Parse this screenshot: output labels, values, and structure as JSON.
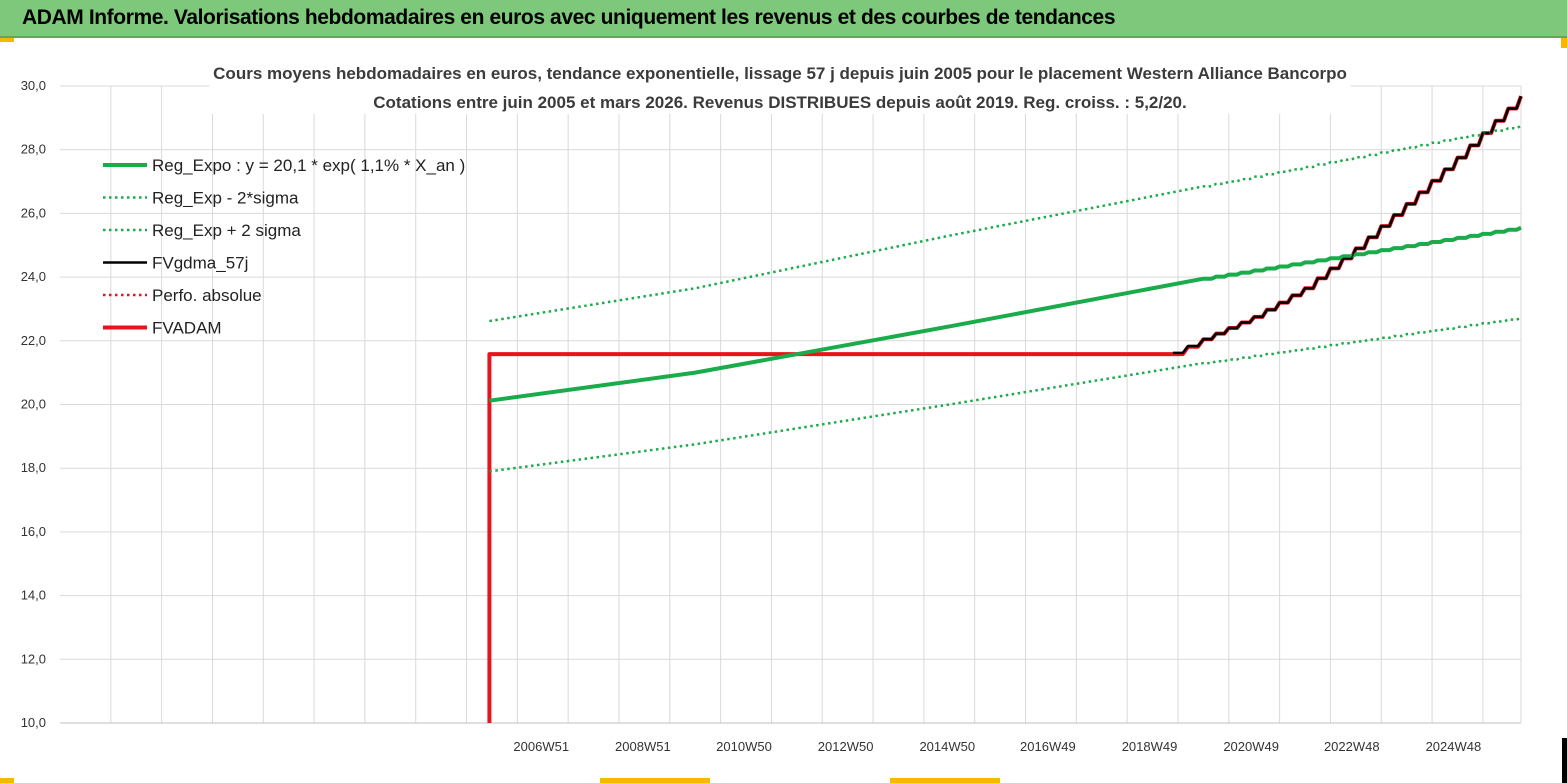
{
  "header": {
    "title": "ADAM Informe. Valorisations hebdomadaires en euros avec uniquement les revenus et des courbes de tendances"
  },
  "colors": {
    "header_bg": "#7dc87a",
    "accent": "#f5b800",
    "trend_green": "#1aab4b",
    "fvadam_red": "#e8141b",
    "fvgdma_black": "#000000",
    "grid": "#d9d9d9"
  },
  "chart_data": {
    "type": "line",
    "title_lines": [
      "Cours moyens hebdomadaires en euros, tendance exponentielle, lissage 57 j depuis juin 2005 pour le placement Western Alliance Bancorpo",
      "Cotations entre juin 2005 et mars 2026. Revenus DISTRIBUES depuis août 2019. Reg. croiss. : 5,2/20."
    ],
    "x_tick_labels": [
      "2006W51",
      "2008W51",
      "2010W50",
      "2012W50",
      "2014W50",
      "2016W49",
      "2018W49",
      "2020W49",
      "2022W48",
      "2024W48"
    ],
    "x_tick_years": [
      2006.97,
      2008.97,
      2010.96,
      2012.96,
      2014.96,
      2016.94,
      2018.94,
      2020.94,
      2022.92,
      2024.92
    ],
    "x_range": [
      1997.5,
      2026.25
    ],
    "ylim": [
      10.0,
      30.0
    ],
    "y_ticks": [
      "10,0",
      "12,0",
      "14,0",
      "16,0",
      "18,0",
      "20,0",
      "22,0",
      "24,0",
      "26,0",
      "28,0",
      "30,0"
    ],
    "legend_position": "top-left",
    "grid": true,
    "series": [
      {
        "name": "Reg_Expo : y = 20,1 * exp( 1,1% *  X_an )",
        "style": "solid-thick",
        "color": "#1aab4b",
        "x": [
          2005.95,
          2010.0,
          2015.0,
          2020.0,
          2026.25
        ],
        "y": [
          20.12,
          21.0,
          22.45,
          23.95,
          25.55
        ]
      },
      {
        "name": "Reg_Exp - 2*sigma",
        "style": "dotted",
        "color": "#1aab4b",
        "x": [
          2005.95,
          2010.0,
          2015.0,
          2020.0,
          2026.25
        ],
        "y": [
          17.9,
          18.75,
          20.0,
          21.3,
          22.72
        ]
      },
      {
        "name": "Reg_Exp + 2 sigma",
        "style": "dotted",
        "color": "#1aab4b",
        "x": [
          2005.95,
          2010.0,
          2015.0,
          2020.0,
          2026.25
        ],
        "y": [
          22.62,
          23.65,
          25.3,
          26.85,
          28.75
        ]
      },
      {
        "name": "FVgdma_57j",
        "style": "solid",
        "color": "#000000",
        "x": [
          2019.4,
          2020.0,
          2021.0,
          2022.0,
          2023.0,
          2024.0,
          2025.0,
          2026.25
        ],
        "y": [
          21.62,
          22.05,
          22.75,
          23.65,
          24.9,
          26.3,
          27.75,
          29.68
        ]
      },
      {
        "name": "Perfo. absolue",
        "style": "dotted",
        "color": "#e8141b",
        "x": [],
        "y": []
      },
      {
        "name": "FVADAM",
        "style": "solid-thick",
        "color": "#e8141b",
        "x": [
          2005.95,
          2005.95,
          2019.4,
          2020.0,
          2021.0,
          2022.0,
          2023.0,
          2024.0,
          2025.0,
          2026.25
        ],
        "y": [
          10.0,
          21.58,
          21.58,
          22.05,
          22.75,
          23.65,
          24.9,
          26.3,
          27.75,
          29.68
        ]
      }
    ]
  }
}
